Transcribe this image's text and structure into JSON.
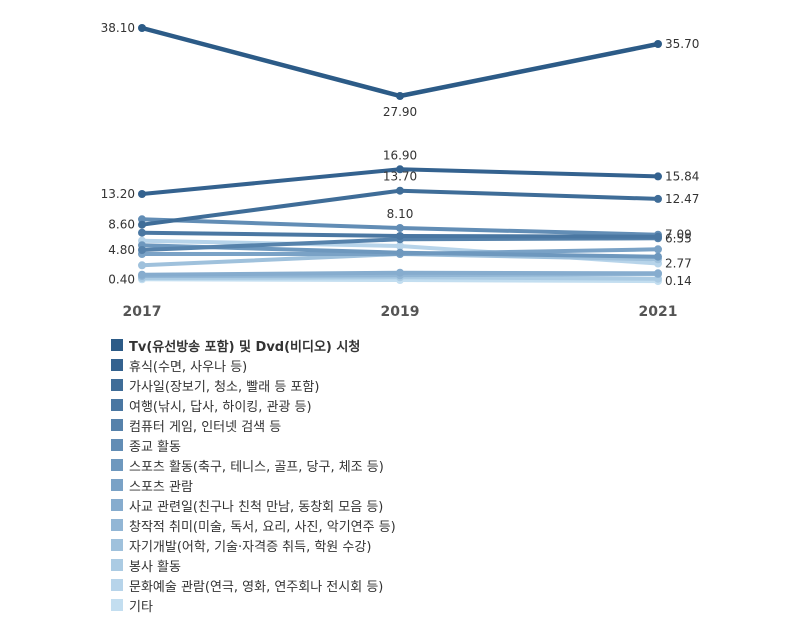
{
  "chart_data": {
    "type": "line",
    "title": "",
    "xlabel": "",
    "ylabel": "",
    "x": [
      "2017",
      "2019",
      "2021"
    ],
    "ylim": [
      0,
      38.1
    ],
    "legend_position": "bottom-left",
    "grid": false,
    "series": [
      {
        "name": "Tv(유선방송 포함) 및 Dvd(비디오) 시청",
        "values": [
          38.1,
          27.9,
          35.7
        ],
        "color": "#2c5b87",
        "labels": [
          "38.10",
          "27.90",
          "35.70"
        ]
      },
      {
        "name": "휴식(수면, 사우나 등)",
        "values": [
          13.2,
          16.9,
          15.84
        ],
        "color": "#34628f",
        "labels": [
          "13.20",
          "16.90",
          "15.84"
        ]
      },
      {
        "name": "가사일(장보기, 청소, 빨래 등 포함)",
        "values": [
          8.6,
          13.7,
          12.47
        ],
        "color": "#3f6d98",
        "labels": [
          "8.60",
          "13.70",
          "12.47"
        ]
      },
      {
        "name": "여행(낚시, 답사, 하이킹, 관광 등)",
        "values": [
          7.4,
          6.9,
          6.8
        ],
        "color": "#4a77a2",
        "labels": [
          "",
          "",
          ""
        ]
      },
      {
        "name": "컴퓨터 게임, 인터넷 검색 등",
        "values": [
          4.8,
          6.4,
          6.55
        ],
        "color": "#5682ab",
        "labels": [
          "4.80",
          "",
          "6.55"
        ]
      },
      {
        "name": "종교 활동",
        "values": [
          9.4,
          8.1,
          7.09
        ],
        "color": "#628db5",
        "labels": [
          "",
          "8.10",
          "7.09"
        ]
      },
      {
        "name": "스포츠 활동(축구, 테니스, 골프, 당구, 체조 등)",
        "values": [
          5.5,
          4.4,
          3.8
        ],
        "color": "#6e98be",
        "labels": [
          "",
          "",
          ""
        ]
      },
      {
        "name": "스포츠 관람",
        "values": [
          4.2,
          4.2,
          4.9
        ],
        "color": "#7aa2c6",
        "labels": [
          "",
          "",
          ""
        ]
      },
      {
        "name": "사교 관련일(친구나 친척 만남, 동창회 모음 등)",
        "values": [
          1.1,
          1.4,
          1.3
        ],
        "color": "#86acce",
        "labels": [
          "",
          "",
          ""
        ]
      },
      {
        "name": "창작적 취미(미술, 독서, 요리, 사진, 악기연주 등)",
        "values": [
          0.9,
          1.0,
          1.2
        ],
        "color": "#92b6d5",
        "labels": [
          "",
          "",
          ""
        ]
      },
      {
        "name": "자기개발(어학, 기술·자격증 취득, 학원 수강)",
        "values": [
          2.5,
          4.2,
          3.4
        ],
        "color": "#9fc1dc",
        "labels": [
          "",
          "",
          ""
        ]
      },
      {
        "name": "봉사 활동",
        "values": [
          0.6,
          0.7,
          0.5
        ],
        "color": "#abcbe3",
        "labels": [
          "",
          "",
          ""
        ]
      },
      {
        "name": "문화예술 관람(연극, 영화, 연주회나 전시회 등)",
        "values": [
          6.2,
          5.4,
          2.77
        ],
        "color": "#b7d4ea",
        "labels": [
          "",
          "",
          "2.77"
        ]
      },
      {
        "name": "기타",
        "values": [
          0.4,
          0.3,
          0.14
        ],
        "color": "#c3def0",
        "labels": [
          "0.40",
          "",
          "0.14"
        ]
      }
    ]
  }
}
